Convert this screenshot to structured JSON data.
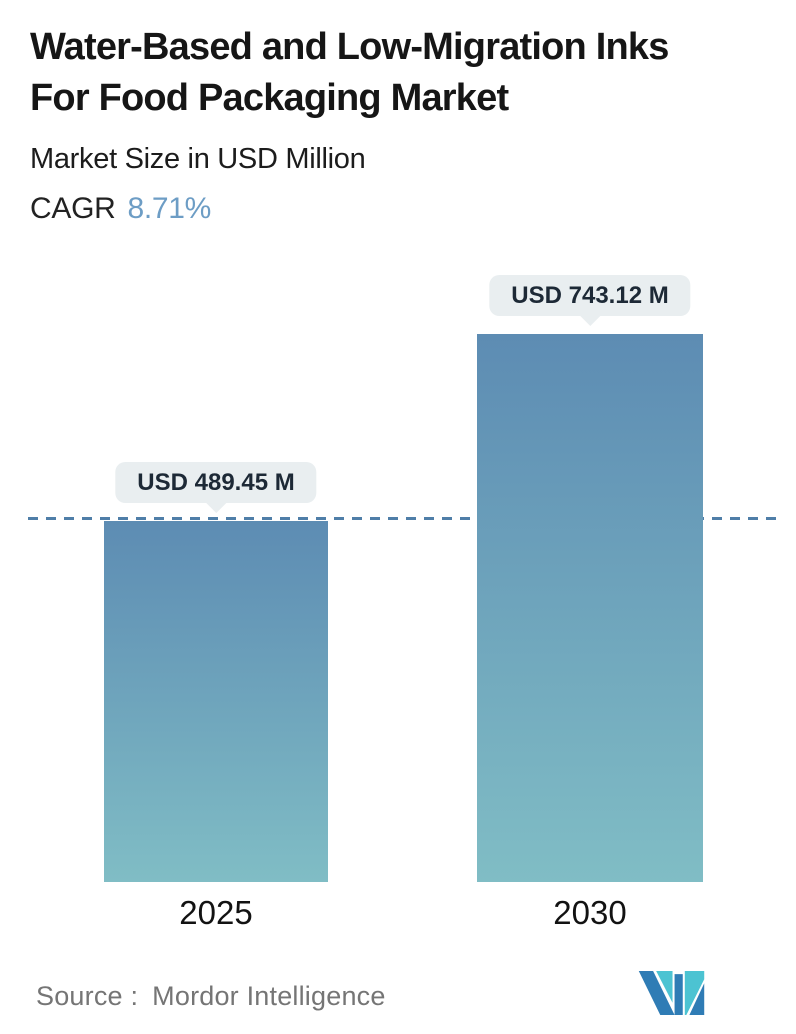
{
  "header": {
    "title_line1": "Water-Based and Low-Migration Inks",
    "title_line2": "For Food Packaging Market",
    "subtitle": "Market Size in USD Million",
    "cagr_label": "CAGR",
    "cagr_value": "8.71%"
  },
  "chart_data": {
    "type": "bar",
    "title": "Water-Based and Low-Migration Inks For Food Packaging Market",
    "subtitle": "Market Size in USD Million",
    "cagr_percent": 8.71,
    "categories": [
      "2025",
      "2030"
    ],
    "values": [
      489.45,
      743.12
    ],
    "value_labels": [
      "USD 489.45 M",
      "USD 743.12 M"
    ],
    "unit": "USD Million",
    "ylim": [
      0,
      800
    ],
    "grid": "off",
    "legend": "none",
    "reference_line": {
      "style": "dashed",
      "at_value": 489.45,
      "note": "horizontal dashed line level with top of 2025 bar"
    }
  },
  "footer": {
    "source_label": "Source :",
    "source_value": "Mordor Intelligence",
    "logo": "mordor-intelligence-logo"
  },
  "colors": {
    "accent_blue": "#6d9dc5",
    "bar_top": "#5d8cb3",
    "bar_bottom": "#80bdc5",
    "dash_color": "#4f7ea8",
    "callout_bg": "#e9eef0",
    "callout_text": "#1d2936",
    "source_text": "#757575",
    "logo_blue": "#2f7cb5",
    "logo_teal": "#4cc3d2"
  }
}
